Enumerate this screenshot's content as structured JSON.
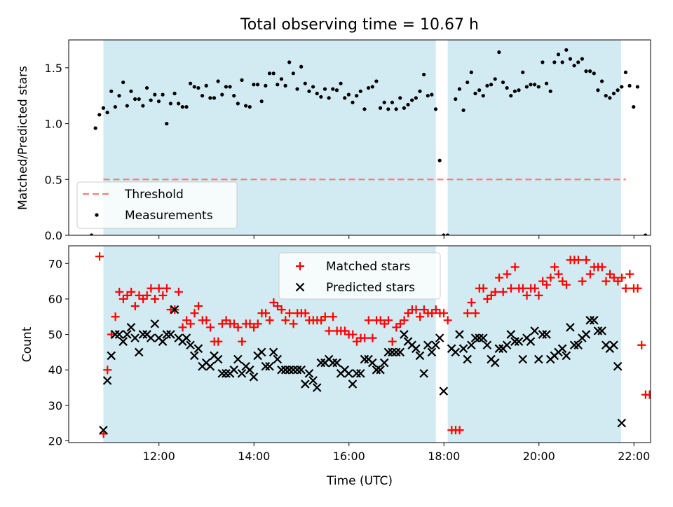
{
  "figure": {
    "title": "Total observing time = 10.67 h",
    "xlabel": "Time (UTC)",
    "x_ticks": [
      "12:00",
      "14:00",
      "16:00",
      "18:00",
      "20:00",
      "22:00"
    ]
  },
  "chart_data": [
    {
      "type": "scatter",
      "ylabel": "Matched/Predicted stars",
      "xlim_hours": [
        10.1,
        22.35
      ],
      "ylim": [
        0,
        1.75
      ],
      "y_ticks": [
        "0.0",
        "0.5",
        "1.0",
        "1.5"
      ],
      "y_tick_values": [
        0,
        0.5,
        1.0,
        1.5
      ],
      "shaded_intervals_hours": [
        [
          10.83,
          17.83
        ],
        [
          18.08,
          21.73
        ]
      ],
      "shade_color": "#add8e6",
      "threshold": {
        "value": 0.5,
        "x_range_hours": [
          10.83,
          21.83
        ],
        "color": "#f08080"
      },
      "legend": {
        "placement": "lower-left",
        "entries": [
          "Threshold",
          "Measurements"
        ]
      },
      "series": [
        {
          "name": "Measurements",
          "color": "#000000",
          "x_start_hours": 10.58,
          "x_step_hours": 0.0833,
          "y": [
            0,
            0.96,
            1.08,
            1.14,
            1.1,
            1.29,
            1.15,
            1.25,
            1.37,
            1.16,
            1.29,
            1.22,
            1.22,
            1.16,
            1.32,
            1.21,
            1.26,
            1.2,
            1.26,
            1.0,
            1.18,
            1.27,
            1.18,
            1.15,
            1.15,
            1.36,
            1.33,
            1.32,
            1.25,
            1.34,
            1.23,
            1.23,
            1.38,
            1.26,
            1.33,
            1.33,
            1.25,
            1.18,
            1.39,
            1.16,
            1.15,
            1.35,
            1.35,
            1.2,
            1.34,
            1.45,
            1.45,
            1.35,
            1.4,
            1.34,
            1.55,
            1.45,
            1.31,
            1.51,
            1.36,
            1.29,
            1.33,
            1.27,
            1.24,
            1.31,
            1.23,
            1.31,
            1.3,
            1.36,
            1.23,
            1.26,
            1.19,
            1.25,
            1.29,
            1.13,
            1.32,
            1.33,
            1.38,
            1.14,
            1.19,
            1.13,
            1.19,
            1.13,
            1.23,
            1.14,
            1.17,
            1.21,
            1.23,
            1.29,
            1.44,
            1.25,
            1.26,
            1.13,
            0.67,
            0,
            0,
            null,
            1.22,
            1.31,
            1.12,
            1.37,
            1.46,
            1.27,
            1.3,
            1.25,
            1.34,
            1.35,
            1.4,
            1.64,
            1.37,
            1.32,
            1.25,
            1.29,
            1.3,
            1.46,
            1.33,
            1.35,
            1.35,
            1.33,
            1.55,
            1.36,
            1.29,
            1.55,
            1.62,
            1.55,
            1.66,
            1.58,
            1.52,
            1.55,
            1.58,
            1.47,
            1.47,
            1.45,
            1.3,
            1.38,
            1.25,
            1.23,
            1.27,
            1.3,
            1.33,
            1.46,
            1.34,
            1.15,
            1.33,
            null,
            0
          ]
        }
      ]
    },
    {
      "type": "scatter",
      "ylabel": "Count",
      "xlim_hours": [
        10.1,
        22.35
      ],
      "ylim": [
        19.5,
        75
      ],
      "y_ticks": [
        "20",
        "30",
        "40",
        "50",
        "60",
        "70"
      ],
      "y_tick_values": [
        20,
        30,
        40,
        50,
        60,
        70
      ],
      "shaded_intervals_hours": [
        [
          10.83,
          17.83
        ],
        [
          18.08,
          21.73
        ]
      ],
      "legend": {
        "placement": "top-center",
        "entries": [
          "Matched stars",
          "Predicted stars"
        ]
      },
      "series": [
        {
          "name": "Matched stars",
          "marker": "plus",
          "color": "#ff0000",
          "x_start_hours": 10.75,
          "x_step_hours": 0.0833,
          "y": [
            72,
            22,
            40,
            50,
            55,
            62,
            60,
            61,
            62,
            58,
            61,
            60,
            61,
            63,
            60,
            63,
            61,
            63,
            57,
            57,
            62,
            52,
            54,
            53,
            56,
            58,
            54,
            54,
            52,
            48,
            48,
            53,
            54,
            53,
            53,
            52,
            48,
            53,
            53,
            52,
            53,
            56,
            56,
            54,
            59,
            58,
            57,
            54,
            56,
            53,
            56,
            56,
            56,
            54,
            54,
            54,
            54,
            55,
            51,
            55,
            51,
            51,
            51,
            50,
            50,
            48,
            49,
            49,
            54,
            49,
            54,
            54,
            53,
            54,
            48,
            52,
            53,
            54,
            56,
            57,
            57,
            55,
            57,
            56,
            56,
            57,
            56,
            56,
            54,
            23,
            23,
            23,
            null,
            56,
            59,
            56,
            63,
            63,
            60,
            61,
            62,
            66,
            62,
            67,
            63,
            69,
            63,
            63,
            61,
            63,
            63,
            61,
            65,
            64,
            66,
            69,
            67,
            65,
            64,
            71,
            71,
            71,
            65,
            71,
            67,
            69,
            69,
            69,
            65,
            67,
            66,
            65,
            66,
            63,
            67,
            63,
            63,
            47,
            33,
            33
          ]
        },
        {
          "name": "Predicted stars",
          "marker": "x",
          "color": "#000000",
          "x_start_hours": 10.83,
          "x_step_hours": 0.0833,
          "y": [
            23,
            37,
            44,
            50,
            50,
            48,
            50,
            52,
            49,
            45,
            50,
            50,
            49,
            53,
            49,
            48,
            50,
            50,
            57,
            49,
            48,
            49,
            47,
            44,
            46,
            41,
            42,
            41,
            44,
            43,
            39,
            39,
            39,
            40,
            43,
            39,
            41,
            40,
            38,
            44,
            45,
            41,
            41,
            45,
            43,
            40,
            40,
            40,
            40,
            40,
            40,
            36,
            39,
            37,
            35,
            42,
            42,
            43,
            42,
            42,
            39,
            40,
            39,
            36,
            39,
            39,
            43,
            43,
            42,
            40,
            40,
            42,
            45,
            45,
            45,
            45,
            50,
            48,
            47,
            46,
            44,
            39,
            47,
            45,
            47,
            49,
            34,
            null,
            46,
            45,
            50,
            46,
            43,
            47,
            49,
            49,
            49,
            47,
            43,
            42,
            46,
            46,
            47,
            50,
            48,
            48,
            43,
            49,
            48,
            51,
            43,
            50,
            50,
            43,
            44,
            45,
            46,
            44,
            52,
            47,
            47,
            49,
            50,
            54,
            54,
            51,
            51,
            47,
            46,
            47,
            41,
            25
          ]
        }
      ]
    }
  ]
}
